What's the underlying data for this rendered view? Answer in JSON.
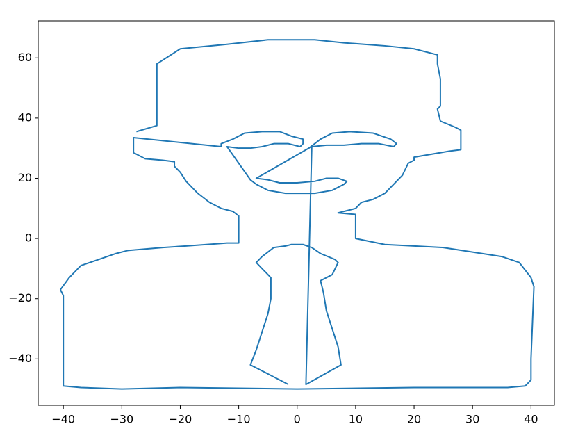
{
  "chart_data": {
    "type": "line",
    "x": [
      -27.5,
      -24,
      -24,
      -24,
      -20,
      -12,
      -5,
      0,
      3,
      8,
      15,
      20,
      24,
      24,
      24.5,
      24.5,
      24,
      24.5,
      27,
      28,
      28,
      26,
      20,
      20,
      19,
      18,
      17,
      15,
      13,
      11,
      10,
      8,
      7,
      10,
      10,
      15,
      20,
      25,
      35,
      38,
      40,
      40.5,
      40,
      40,
      39,
      36,
      20,
      0,
      -20,
      -30,
      -37,
      -40,
      -40,
      -40.5,
      -39,
      -37,
      -34,
      -31,
      -29,
      -23,
      -19,
      -12,
      -10,
      -10,
      -11,
      -13,
      -15,
      -17,
      -19,
      -20,
      -21,
      -21,
      -23,
      -26,
      -28,
      -28,
      -13,
      -13,
      -11,
      -9,
      -6,
      -3,
      -1,
      1,
      1,
      0.5,
      -1.5,
      -4,
      -6,
      -8,
      -10,
      -12,
      -8,
      -7,
      -5,
      -2,
      0,
      3,
      6,
      8,
      8.5,
      7,
      5,
      3,
      0,
      -3,
      -5,
      -7,
      2,
      3,
      4,
      6,
      9,
      13,
      16,
      17,
      16.5,
      14,
      11,
      8,
      5,
      2.5,
      1.5,
      7.5,
      7,
      6,
      5,
      4.5,
      4,
      6,
      7,
      6.5,
      4,
      2.5,
      1,
      -1,
      -2,
      -4,
      -6,
      -7,
      -6,
      -4.5,
      -4.5,
      -5,
      -6,
      -7,
      -8,
      -1.5
    ],
    "series": [
      {
        "color": "#1f77b4",
        "values": [
          35.5,
          37.5,
          42,
          58,
          63,
          64.5,
          66,
          66,
          66,
          65,
          64,
          63,
          61,
          58,
          53,
          44,
          43,
          39,
          37,
          36,
          29.5,
          29,
          27,
          26,
          25,
          21,
          19,
          15,
          13,
          12,
          10,
          9,
          8.5,
          8,
          0,
          -2,
          -2.5,
          -3,
          -6,
          -8,
          -13,
          -16,
          -40,
          -47,
          -49,
          -49.5,
          -49.5,
          -50,
          -49.5,
          -50,
          -49.5,
          -49,
          -19,
          -17,
          -13,
          -9,
          -7,
          -5,
          -4,
          -3,
          -2.5,
          -1.5,
          -1.5,
          7.5,
          9,
          10,
          12,
          15,
          19,
          22,
          24,
          25.5,
          26,
          26.5,
          28.5,
          33.5,
          30.5,
          31.5,
          33,
          35,
          35.5,
          35.5,
          34,
          33,
          31.5,
          30.5,
          31.5,
          31.5,
          30.5,
          30,
          30,
          30.5,
          19.5,
          18,
          16,
          15,
          15,
          15,
          16,
          18,
          19,
          20,
          20,
          19,
          18.5,
          18.5,
          19.5,
          20,
          30,
          31.5,
          33,
          35,
          35.5,
          35,
          33,
          31.5,
          30.5,
          31.5,
          31.5,
          31,
          31,
          30.5,
          -48.5,
          -42,
          -36,
          -30,
          -24,
          -18,
          -14,
          -12,
          -8,
          -7,
          -5,
          -3,
          -2,
          -2,
          -2.5,
          -3,
          -6,
          -8,
          -10,
          -13,
          -20,
          -25,
          -31,
          -37,
          -42,
          -48.5
        ]
      }
    ],
    "xlim": [
      -44.3,
      44.0
    ],
    "ylim": [
      -55.4,
      72.3
    ],
    "xticks": [
      {
        "value": -40,
        "label": "−40"
      },
      {
        "value": -30,
        "label": "−30"
      },
      {
        "value": -20,
        "label": "−20"
      },
      {
        "value": -10,
        "label": "−10"
      },
      0,
      10,
      20,
      30,
      40
    ],
    "yticks": [
      {
        "value": -40,
        "label": "−40"
      },
      {
        "value": -20,
        "label": "−20"
      },
      0,
      20,
      40,
      60
    ]
  }
}
